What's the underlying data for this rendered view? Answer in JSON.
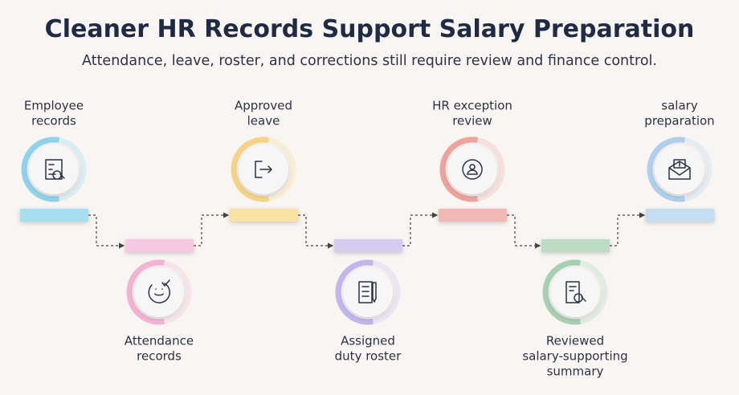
{
  "header": {
    "title": "Cleaner HR Records Support Salary Preparation",
    "subtitle": "Attendance, leave, roster, and corrections still require review and finance control."
  },
  "nodes": [
    {
      "lines": [
        "Employee",
        "records"
      ]
    },
    {
      "lines": [
        "Attendance",
        "records"
      ]
    },
    {
      "lines": [
        "Approved",
        "leave"
      ]
    },
    {
      "lines": [
        "Assigned",
        "duty roster"
      ]
    },
    {
      "lines": [
        "HR exception",
        "review"
      ]
    },
    {
      "lines": [
        "Reviewed",
        "salary-supporting",
        "summary"
      ]
    },
    {
      "lines": [
        "salary",
        "preparation"
      ]
    }
  ]
}
